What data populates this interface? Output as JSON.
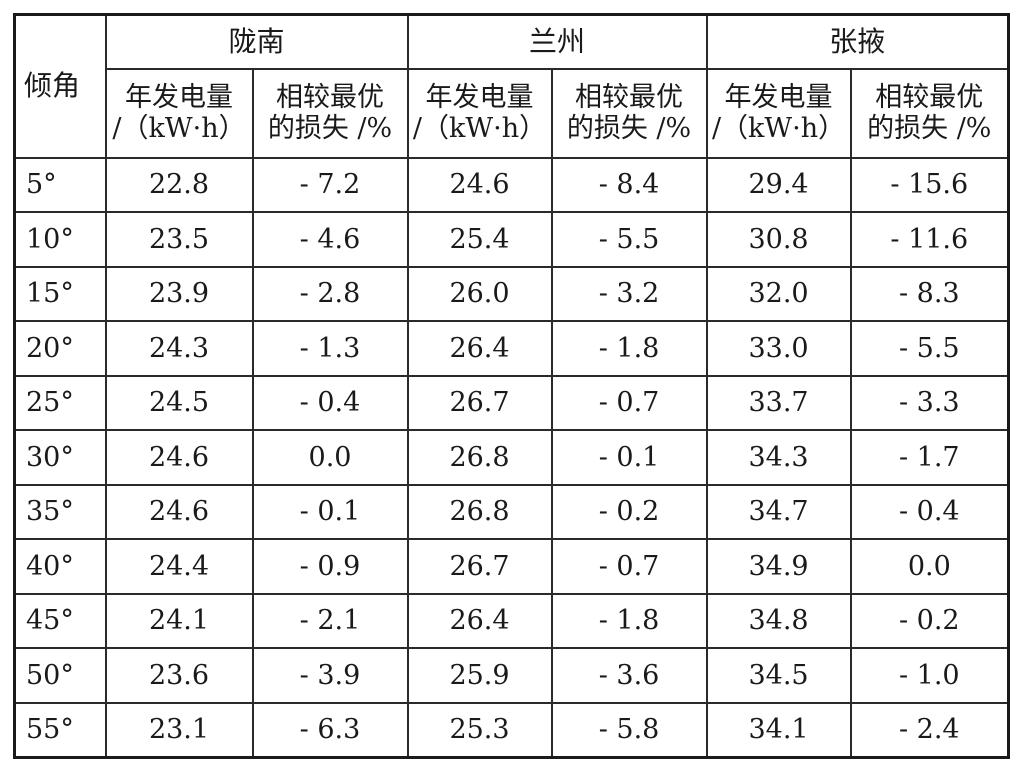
{
  "table": {
    "tilt_label": "倾角",
    "regions": [
      "陇南",
      "兰州",
      "张掖"
    ],
    "sub_headers": [
      {
        "line1": "年发电量",
        "line2": "/（kW·h）"
      },
      {
        "line1": "相较最优",
        "line2": "的损失 /%"
      }
    ],
    "rows": [
      {
        "angle": "5°",
        "cells": [
          "22.8",
          "- 7.2",
          "24.6",
          "- 8.4",
          "29.4",
          "- 15.6"
        ]
      },
      {
        "angle": "10°",
        "cells": [
          "23.5",
          "- 4.6",
          "25.4",
          "- 5.5",
          "30.8",
          "- 11.6"
        ]
      },
      {
        "angle": "15°",
        "cells": [
          "23.9",
          "- 2.8",
          "26.0",
          "- 3.2",
          "32.0",
          "- 8.3"
        ]
      },
      {
        "angle": "20°",
        "cells": [
          "24.3",
          "- 1.3",
          "26.4",
          "- 1.8",
          "33.0",
          "- 5.5"
        ]
      },
      {
        "angle": "25°",
        "cells": [
          "24.5",
          "- 0.4",
          "26.7",
          "- 0.7",
          "33.7",
          "- 3.3"
        ]
      },
      {
        "angle": "30°",
        "cells": [
          "24.6",
          "0.0",
          "26.8",
          "- 0.1",
          "34.3",
          "- 1.7"
        ]
      },
      {
        "angle": "35°",
        "cells": [
          "24.6",
          "- 0.1",
          "26.8",
          "- 0.2",
          "34.7",
          "- 0.4"
        ]
      },
      {
        "angle": "40°",
        "cells": [
          "24.4",
          "- 0.9",
          "26.7",
          "- 0.7",
          "34.9",
          "0.0"
        ]
      },
      {
        "angle": "45°",
        "cells": [
          "24.1",
          "- 2.1",
          "26.4",
          "- 1.8",
          "34.8",
          "- 0.2"
        ]
      },
      {
        "angle": "50°",
        "cells": [
          "23.6",
          "- 3.9",
          "25.9",
          "- 3.6",
          "34.5",
          "- 1.0"
        ]
      },
      {
        "angle": "55°",
        "cells": [
          "23.1",
          "- 6.3",
          "25.3",
          "- 5.8",
          "34.1",
          "- 2.4"
        ]
      }
    ]
  }
}
